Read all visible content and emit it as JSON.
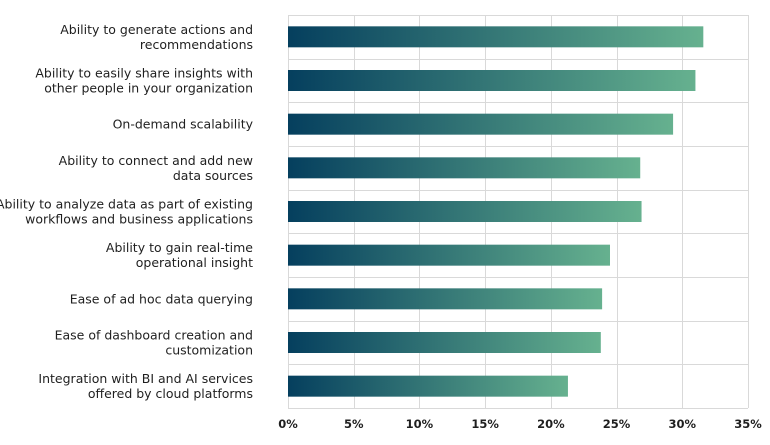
{
  "chart_data": {
    "type": "bar",
    "orientation": "horizontal",
    "categories": [
      [
        "Ability to generate actions and",
        "recommendations"
      ],
      [
        "Ability to easily share insights with",
        "other people in your organization"
      ],
      [
        "On-demand scalability"
      ],
      [
        "Ability to connect and add new",
        "data sources"
      ],
      [
        "Ability to analyze data as part of existing",
        "workflows and business applications"
      ],
      [
        "Ability to gain real-time",
        "operational insight"
      ],
      [
        "Ease of ad hoc data querying"
      ],
      [
        "Ease of dashboard creation and",
        "customization"
      ],
      [
        "Integration with BI and AI services",
        "offered by cloud platforms"
      ]
    ],
    "values": [
      31.6,
      31.0,
      29.3,
      26.8,
      26.9,
      24.5,
      23.9,
      23.8,
      21.3
    ],
    "xlim": [
      0,
      35
    ],
    "xticks": [
      0,
      5,
      10,
      15,
      20,
      25,
      30,
      35
    ],
    "xtick_labels": [
      "0%",
      "5%",
      "10%",
      "15%",
      "20%",
      "25%",
      "30%",
      "35%"
    ],
    "grid": true,
    "title": "",
    "xlabel": "",
    "ylabel": "",
    "colors": {
      "bar_start": "#053f5e",
      "bar_end": "#66b18f",
      "grid": "#d9d9d9",
      "text": "#1f1f1f"
    }
  }
}
